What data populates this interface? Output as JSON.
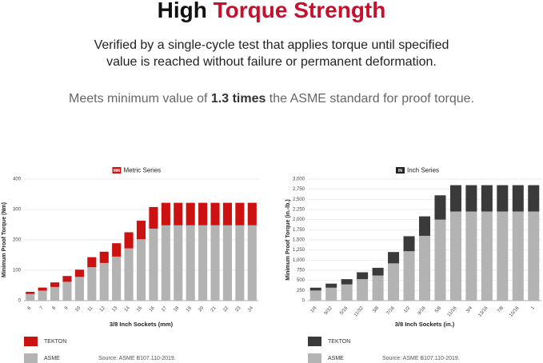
{
  "header": {
    "title_plain": "High",
    "title_accent": "Torque Strength"
  },
  "intro": {
    "lines": [
      "Verified by a single-cycle test that applies torque until specified",
      "value is reached without failure or permanent deformation."
    ]
  },
  "claim": {
    "before": "Meets minimum value of ",
    "bold": "1.3 times",
    "after": " the ASME standard for proof torque."
  },
  "chart_data": [
    {
      "type": "bar",
      "stacked": true,
      "title": "Metric Series",
      "badge": "MM",
      "badge_color": "#cc1111",
      "categories": [
        "6",
        "7",
        "8",
        "9",
        "10",
        "11",
        "12",
        "13",
        "14",
        "15",
        "16",
        "17",
        "18",
        "19",
        "20",
        "21",
        "22",
        "23",
        "24"
      ],
      "series": [
        {
          "name": "ASME",
          "color": "#b3b3b3",
          "values": [
            22,
            33,
            45,
            62,
            78,
            110,
            124,
            145,
            172,
            202,
            237,
            248,
            248,
            248,
            248,
            248,
            248,
            248,
            248
          ]
        },
        {
          "name": "TEKTON",
          "color": "#cc1111",
          "values": [
            7,
            10,
            15,
            19,
            24,
            33,
            37,
            44,
            53,
            61,
            71,
            74,
            74,
            74,
            74,
            74,
            74,
            74,
            74
          ]
        }
      ],
      "ylim": [
        0,
        400
      ],
      "yticks": [
        0,
        100,
        200,
        300,
        400
      ],
      "grid": true,
      "x_label": "3/8 Inch Sockets (mm)",
      "y_label": "Minimum Proof Torque (Nm)",
      "source": "Source: ASME B107.110-2019."
    },
    {
      "type": "bar",
      "stacked": true,
      "title": "Inch Series",
      "badge": "IN",
      "badge_color": "#222222",
      "categories": [
        "1/4",
        "9/32",
        "5/16",
        "11/32",
        "3/8",
        "7/16",
        "1/2",
        "9/16",
        "5/8",
        "11/16",
        "3/4",
        "13/16",
        "7/8",
        "15/16",
        "1"
      ],
      "series": [
        {
          "name": "ASME",
          "color": "#b3b3b3",
          "values": [
            250,
            320,
            400,
            530,
            620,
            920,
            1220,
            1600,
            2000,
            2200,
            2200,
            2200,
            2200,
            2200,
            2200
          ]
        },
        {
          "name": "TEKTON",
          "color": "#3a3a3a",
          "values": [
            70,
            100,
            130,
            170,
            190,
            280,
            370,
            480,
            600,
            650,
            650,
            650,
            650,
            650,
            650
          ]
        }
      ],
      "ylim": [
        0,
        3000
      ],
      "yticks": [
        0,
        250,
        500,
        {
          "value": 750,
          "label": "750"
        },
        {
          "value": 1000,
          "label": "1,000"
        },
        {
          "value": 1250,
          "label": "1,250"
        },
        {
          "value": 1500,
          "label": "1,500"
        },
        {
          "value": 1750,
          "label": "1,750"
        },
        {
          "value": 2000,
          "label": "2,000"
        },
        {
          "value": 2250,
          "label": "2,250"
        },
        {
          "value": 2500,
          "label": "2,500"
        },
        {
          "value": 2750,
          "label": "2,750"
        },
        {
          "value": 3000,
          "label": "3,000"
        }
      ],
      "grid": true,
      "x_label": "3/8 Inch Sockets (in.)",
      "y_label": "Minimum Proof Torque (in.-lb.)",
      "source": "Source: ASME B107.110-2019."
    }
  ]
}
